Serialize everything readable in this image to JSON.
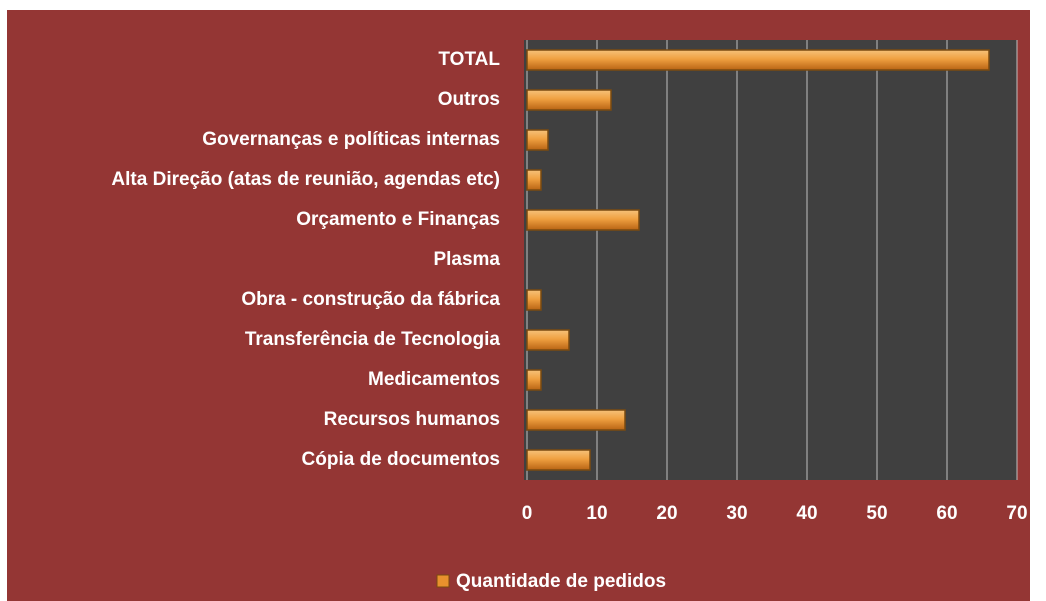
{
  "chart_data": {
    "type": "bar",
    "orientation": "horizontal",
    "categories": [
      "TOTAL",
      "Outros",
      "Governanças e políticas internas",
      "Alta Direção (atas de reunião, agendas etc)",
      "Orçamento e Finanças",
      "Plasma",
      "Obra - construção da fábrica",
      "Transferência de Tecnologia",
      "Medicamentos",
      "Recursos humanos",
      "Cópia de documentos"
    ],
    "series": [
      {
        "name": "Quantidade de pedidos",
        "color": "#e8912d",
        "values": [
          66,
          12,
          3,
          2,
          16,
          0,
          2,
          6,
          2,
          14,
          9
        ]
      }
    ],
    "xlim": [
      0,
      70
    ],
    "xticks": [
      0,
      10,
      20,
      30,
      40,
      50,
      60,
      70
    ],
    "grid": true,
    "legend": "bottom"
  }
}
